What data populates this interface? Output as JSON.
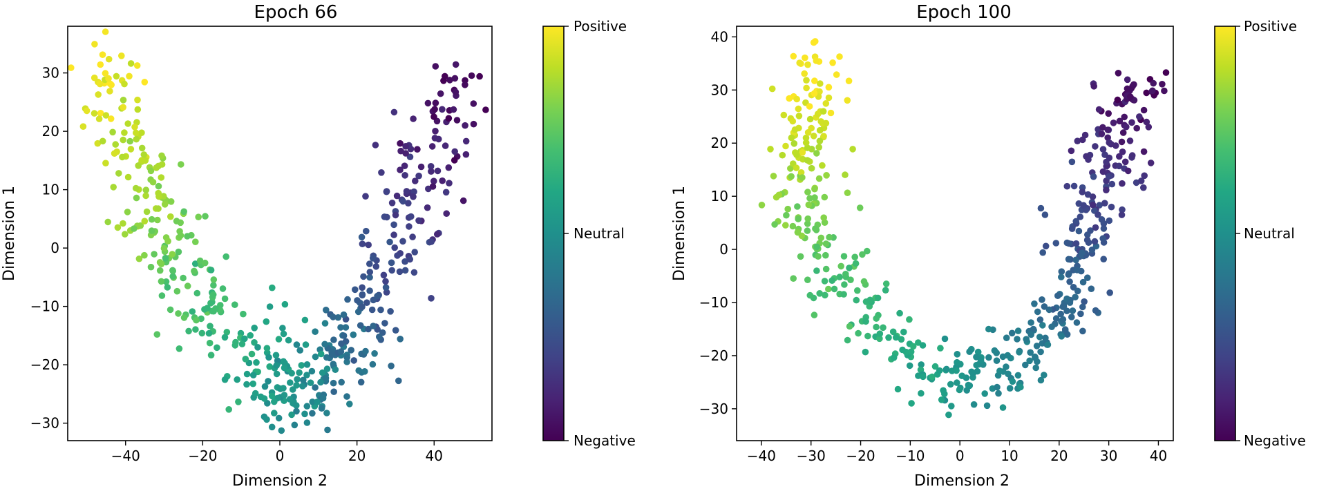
{
  "chart_data": [
    {
      "type": "scatter",
      "title": "Epoch 66",
      "xlabel": "Dimension 2",
      "ylabel": "Dimension 1",
      "xlim": [
        -55,
        55
      ],
      "ylim": [
        -33,
        38
      ],
      "xticks": [
        -40,
        -20,
        0,
        20,
        40
      ],
      "yticks": [
        -30,
        -20,
        -10,
        0,
        10,
        20,
        30
      ],
      "colorbar": {
        "colormap": "viridis",
        "labels": [
          "Negative",
          "Neutral",
          "Positive"
        ]
      },
      "curve_anchors": [
        [
          -48,
          33
        ],
        [
          -40,
          18
        ],
        [
          -33,
          5
        ],
        [
          -25,
          -6
        ],
        [
          -12,
          -16
        ],
        [
          0,
          -22
        ],
        [
          8,
          -25
        ],
        [
          16,
          -18
        ],
        [
          25,
          -8
        ],
        [
          33,
          5
        ],
        [
          40,
          17
        ],
        [
          46,
          30
        ]
      ],
      "curve_points": 560,
      "curve_spread": 8,
      "seed": 66
    },
    {
      "type": "scatter",
      "title": "Epoch 100",
      "xlabel": "Dimension 2",
      "ylabel": "Dimension 1",
      "xlim": [
        -45,
        43
      ],
      "ylim": [
        -36,
        42
      ],
      "xticks": [
        -40,
        -30,
        -20,
        -10,
        0,
        10,
        20,
        30,
        40
      ],
      "yticks": [
        -30,
        -20,
        -10,
        0,
        10,
        20,
        30,
        40
      ],
      "colorbar": {
        "colormap": "viridis",
        "labels": [
          "Negative",
          "Neutral",
          "Positive"
        ]
      },
      "curve_anchors": [
        [
          -31,
          33
        ],
        [
          -30,
          22
        ],
        [
          -34,
          12
        ],
        [
          -30,
          2
        ],
        [
          -22,
          -8
        ],
        [
          -12,
          -20
        ],
        [
          -2,
          -25
        ],
        [
          8,
          -24
        ],
        [
          17,
          -16
        ],
        [
          23,
          -5
        ],
        [
          26,
          5
        ],
        [
          30,
          16
        ],
        [
          33,
          25
        ],
        [
          38,
          31
        ]
      ],
      "curve_points": 560,
      "curve_spread": 6,
      "seed": 100
    }
  ]
}
